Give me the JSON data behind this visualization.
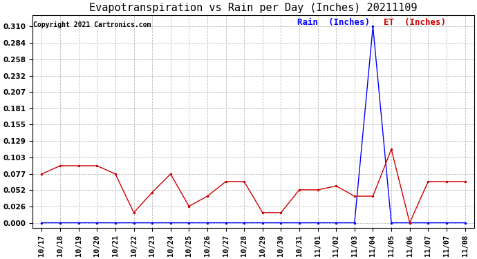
{
  "title": "Evapotranspiration vs Rain per Day (Inches) 20211109",
  "copyright": "Copyright 2021 Cartronics.com",
  "legend_rain": "Rain  (Inches)",
  "legend_et": "ET  (Inches)",
  "dates": [
    "10/17",
    "10/18",
    "10/19",
    "10/20",
    "10/21",
    "10/22",
    "10/23",
    "10/24",
    "10/25",
    "10/26",
    "10/27",
    "10/28",
    "10/29",
    "10/30",
    "10/31",
    "11/01",
    "11/02",
    "11/03",
    "11/04",
    "11/05",
    "11/06",
    "11/07",
    "11/07",
    "11/08"
  ],
  "rain_values": [
    0.0,
    0.0,
    0.0,
    0.0,
    0.0,
    0.0,
    0.0,
    0.0,
    0.0,
    0.0,
    0.0,
    0.0,
    0.0,
    0.0,
    0.0,
    0.0,
    0.0,
    0.0,
    0.31,
    0.0,
    0.0,
    0.0,
    0.0,
    0.0
  ],
  "et_values": [
    0.077,
    0.09,
    0.09,
    0.09,
    0.077,
    0.016,
    0.048,
    0.077,
    0.026,
    0.042,
    0.065,
    0.065,
    0.016,
    0.016,
    0.052,
    0.052,
    0.058,
    0.042,
    0.042,
    0.116,
    0.0,
    0.065,
    0.065,
    0.065
  ],
  "yticks": [
    0.0,
    0.026,
    0.052,
    0.077,
    0.103,
    0.129,
    0.155,
    0.181,
    0.207,
    0.232,
    0.258,
    0.284,
    0.31
  ],
  "rain_color": "#0000ff",
  "et_color": "#cc0000",
  "background_color": "#ffffff",
  "grid_color": "#bbbbbb",
  "title_fontsize": 11,
  "copyright_fontsize": 7,
  "legend_fontsize": 9,
  "tick_fontsize": 7.5,
  "ylim": [
    -0.008,
    0.328
  ]
}
